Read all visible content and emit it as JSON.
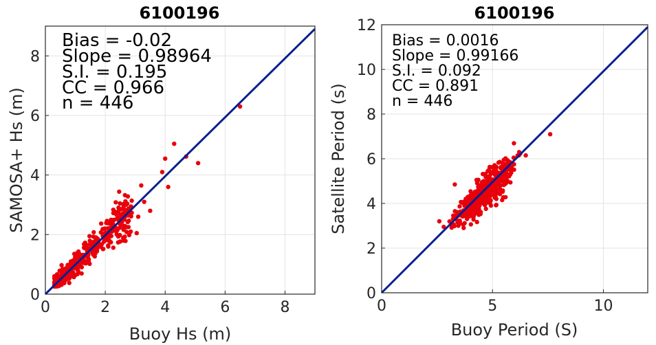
{
  "chart_data": [
    {
      "type": "scatter",
      "title": "6100196",
      "xlabel": "Buoy Hs (m)",
      "ylabel": "SAMOSA+ Hs (m)",
      "xlim": [
        0,
        9
      ],
      "ylim": [
        0,
        9
      ],
      "xticks": [
        0,
        2,
        4,
        6,
        8
      ],
      "yticks": [
        0,
        2,
        4,
        6,
        8
      ],
      "grid": true,
      "stats": [
        "Bias = -0.02",
        "Slope = 0.98964",
        "S.I. = 0.195",
        "CC = 0.966",
        "n = 446"
      ],
      "fit_line": {
        "slope": 0.98964,
        "intercept": 0.0
      },
      "point_color": "#e8000b",
      "line_color": "#0a1f8f",
      "n_points": 446,
      "outliers": [
        [
          6.5,
          6.3
        ],
        [
          4.3,
          5.05
        ],
        [
          4.7,
          4.62
        ],
        [
          5.1,
          4.4
        ],
        [
          4.0,
          4.55
        ],
        [
          3.9,
          4.1
        ],
        [
          4.1,
          3.6
        ],
        [
          3.2,
          3.65
        ],
        [
          3.3,
          3.1
        ],
        [
          3.1,
          2.6
        ],
        [
          2.85,
          2.1
        ],
        [
          2.6,
          1.8
        ],
        [
          3.05,
          2.05
        ],
        [
          2.2,
          1.95
        ],
        [
          2.1,
          1.6
        ],
        [
          2.45,
          2.8
        ],
        [
          3.5,
          2.8
        ],
        [
          1.7,
          1.9
        ]
      ]
    },
    {
      "type": "scatter",
      "title": "6100196",
      "xlabel": "Buoy Period (S)",
      "ylabel": "Satellite  Period (s)",
      "xlim": [
        0,
        12
      ],
      "ylim": [
        0,
        12
      ],
      "xticks": [
        0,
        5,
        10
      ],
      "yticks": [
        0,
        2,
        4,
        6,
        8,
        10,
        12
      ],
      "grid": true,
      "stats": [
        "Bias = 0.0016",
        "Slope = 0.99166",
        "S.I. = 0.092",
        "CC = 0.891",
        "n = 446"
      ],
      "fit_line": {
        "slope": 0.99166,
        "intercept": 0.0
      },
      "point_color": "#e8000b",
      "line_color": "#0a1f8f",
      "n_points": 446,
      "outliers": [
        [
          7.6,
          7.1
        ],
        [
          6.5,
          6.15
        ],
        [
          6.2,
          6.3
        ],
        [
          2.6,
          3.2
        ],
        [
          3.3,
          4.85
        ],
        [
          5.7,
          5.8
        ],
        [
          2.8,
          2.95
        ]
      ]
    }
  ]
}
